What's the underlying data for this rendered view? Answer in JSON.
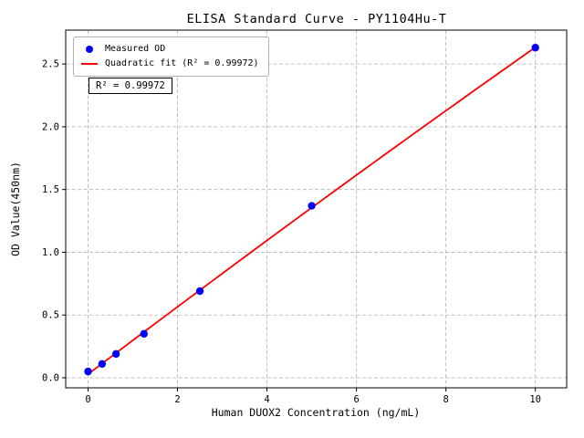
{
  "chart_data": {
    "type": "scatter",
    "title": "ELISA Standard Curve - PY1104Hu-T",
    "xlabel": "Human DUOX2 Concentration (ng/mL)",
    "ylabel": "OD Value(450nm)",
    "xlim": [
      -0.5,
      10.7
    ],
    "ylim": [
      -0.08,
      2.77
    ],
    "xticks": [
      0,
      2,
      4,
      6,
      8,
      10
    ],
    "yticks": [
      0.0,
      0.5,
      1.0,
      1.5,
      2.0,
      2.5
    ],
    "grid": true,
    "grid_style": "dashed",
    "annotation": "R² = 0.99972",
    "legend": {
      "position": "upper-left",
      "entries": [
        {
          "label": "Measured OD",
          "type": "marker",
          "color": "#0000ff"
        },
        {
          "label": "Quadratic fit (R² = 0.99972)",
          "type": "line",
          "color": "#ff0000"
        }
      ]
    },
    "series": [
      {
        "name": "Measured OD",
        "type": "scatter",
        "color": "#0000ff",
        "x": [
          0,
          0.3125,
          0.625,
          1.25,
          2.5,
          5,
          10
        ],
        "y": [
          0.05,
          0.11,
          0.19,
          0.35,
          0.69,
          1.37,
          2.63
        ]
      },
      {
        "name": "Quadratic fit",
        "type": "line",
        "color": "#ff0000",
        "fit": "quadratic",
        "x_range": [
          0,
          10
        ],
        "r_squared": 0.99972
      }
    ],
    "colors": {
      "marker": "#0000ff",
      "fit_line": "#ff0000",
      "grid": "#b0b0b0",
      "axis": "#000000",
      "background": "#ffffff"
    }
  }
}
